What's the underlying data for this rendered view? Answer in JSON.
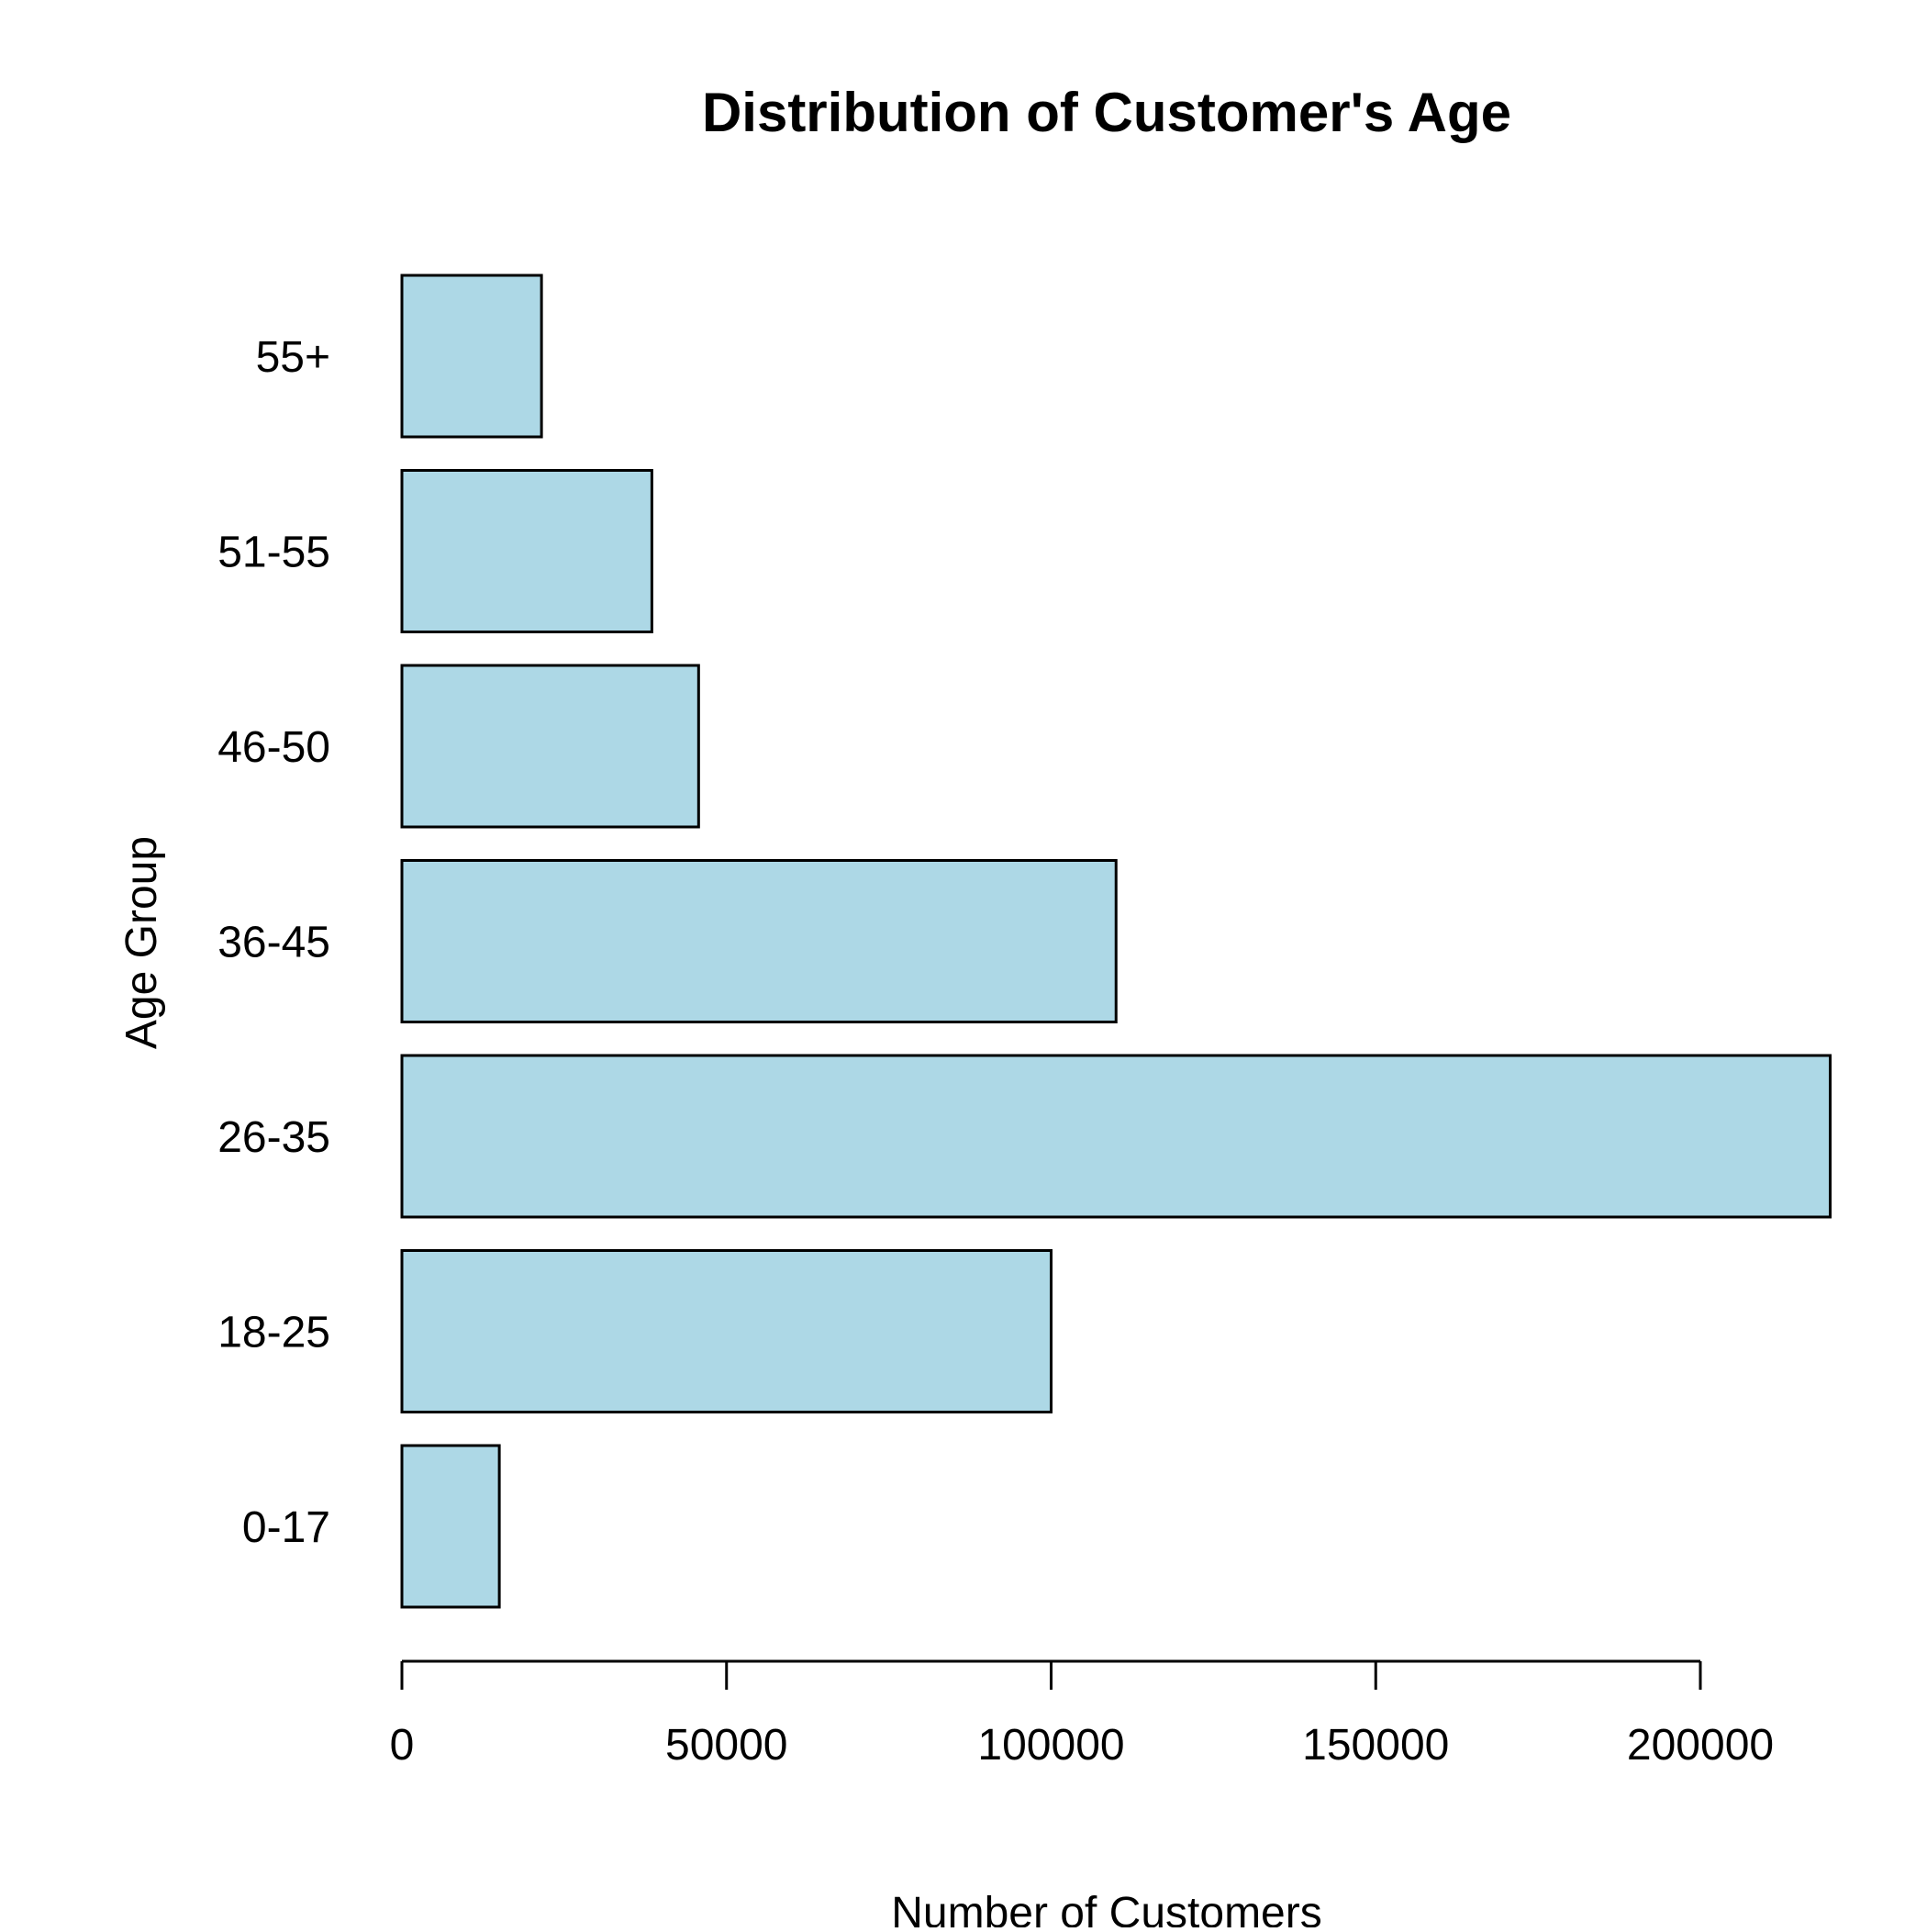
{
  "chart_data": {
    "type": "bar",
    "orientation": "horizontal",
    "title": "Distribution of Customer's Age",
    "xlabel": "Number of Customers",
    "ylabel": "Age Group",
    "categories": [
      "0-17",
      "18-25",
      "26-35",
      "36-45",
      "46-50",
      "51-55",
      "55+"
    ],
    "values": [
      15000,
      100000,
      220000,
      110000,
      45700,
      38500,
      21500
    ],
    "xlim": [
      0,
      200000
    ],
    "xticks": [
      0,
      50000,
      100000,
      150000,
      200000
    ],
    "xtick_labels": [
      "0",
      "50000",
      "100000",
      "150000",
      "200000"
    ],
    "grid": false,
    "legend": "none",
    "colors": {
      "bar_fill": "#ADD8E6",
      "bar_stroke": "#000000"
    }
  }
}
